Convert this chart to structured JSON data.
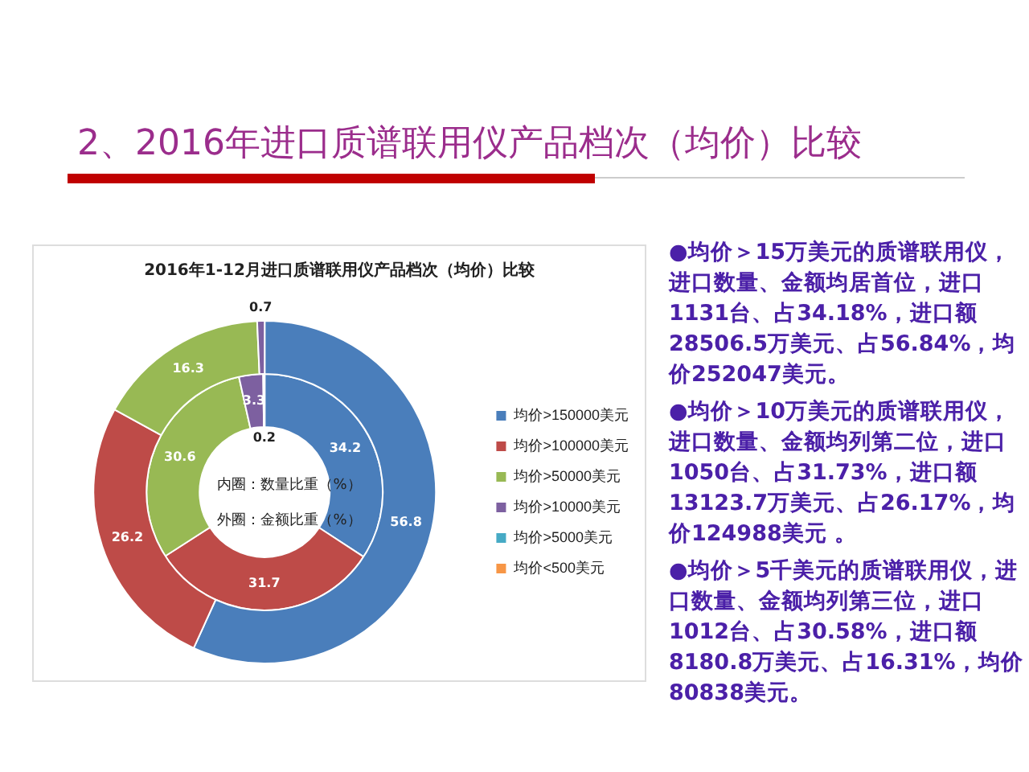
{
  "chart_data": {
    "type": "donut",
    "title": "2、2016年进口质谱联用仪产品档次（均价）比较",
    "subtitle": "2016年1-12月进口质谱联用仪产品档次（均价）比较",
    "categories": [
      "均价>150000美元",
      "均价>100000美元",
      "均价>50000美元",
      "均价>10000美元",
      "均价>5000美元",
      "均价<500美元"
    ],
    "colors": [
      "#4a7ebb",
      "#be4b48",
      "#98b954",
      "#7d60a0",
      "#46aac5",
      "#f79646"
    ],
    "series": [
      {
        "values": [
          56.8,
          26.2,
          16.3,
          0.7,
          null,
          null
        ]
      },
      {
        "values": [
          34.2,
          31.7,
          30.6,
          3.3,
          0.2,
          null
        ]
      }
    ],
    "data_labels": true,
    "legend": "right",
    "annotations": [
      "内圈：数量比重（%）",
      "外圈：金额比重（%）",
      "●均价＞15万美元的质谱联用仪，进口数量、金额均居首位，进口1131台、占34.18%，进口额28506.5万美元、占56.84%，均价252047美元。",
      "●均价＞10万美元的质谱联用仪，进口数量、金额均列第二位，进口1050台、占31.73%，进口额13123.7万美元、占26.17%，均价124988美元 。",
      "●均价＞5千美元的质谱联用仪，进口数量、金额均列第三位，进口1012台、占30.58%，进口额8180.8万美元、占16.31%，均价80838美元。"
    ]
  }
}
